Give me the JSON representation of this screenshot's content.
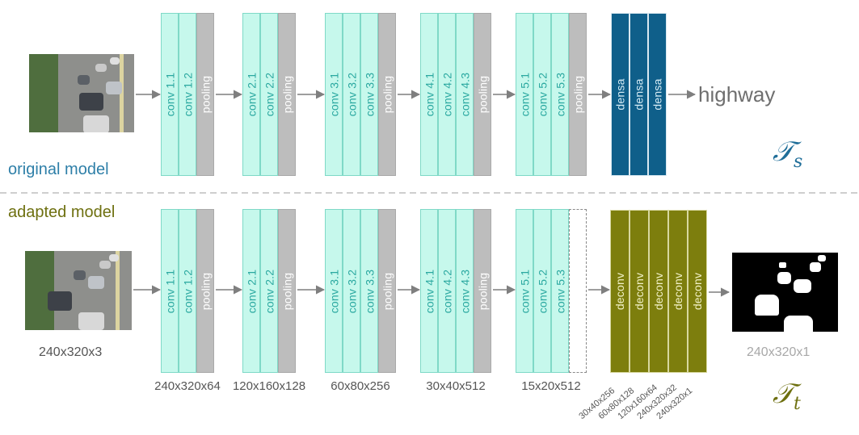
{
  "top": {
    "label": "original model",
    "output": "highway",
    "math_symbol": "𝒯",
    "math_sub": "s",
    "stages": [
      {
        "convs": [
          "conv 1.1",
          "conv 1.2"
        ],
        "pool": "pooling"
      },
      {
        "convs": [
          "conv 2.1",
          "conv 2.2"
        ],
        "pool": "pooling"
      },
      {
        "convs": [
          "conv 3.1",
          "conv 3.2",
          "conv 3.3"
        ],
        "pool": "pooling"
      },
      {
        "convs": [
          "conv 4.1",
          "conv 4.2",
          "conv 4.3"
        ],
        "pool": "pooling"
      },
      {
        "convs": [
          "conv 5.1",
          "conv 5.2",
          "conv 5.3"
        ],
        "pool": "pooling"
      }
    ],
    "dense": [
      "densa",
      "densa",
      "densa"
    ]
  },
  "bottom": {
    "label": "adapted model",
    "input_dims": "240x320x3",
    "output_dims": "240x320x1",
    "math_symbol": "𝒯",
    "math_sub": "t",
    "stages": [
      {
        "convs": [
          "conv 1.1",
          "conv 1.2"
        ],
        "pool": "pooling",
        "dims": "240x320x64"
      },
      {
        "convs": [
          "conv 2.1",
          "conv 2.2"
        ],
        "pool": "pooling",
        "dims": "120x160x128"
      },
      {
        "convs": [
          "conv 3.1",
          "conv 3.2",
          "conv 3.3"
        ],
        "pool": "pooling",
        "dims": "60x80x256"
      },
      {
        "convs": [
          "conv 4.1",
          "conv 4.2",
          "conv 4.3"
        ],
        "pool": "pooling",
        "dims": "30x40x512"
      },
      {
        "convs": [
          "conv 5.1",
          "conv 5.2",
          "conv 5.3"
        ],
        "pool": "",
        "dims": "15x20x512"
      }
    ],
    "deconv": [
      "deconv",
      "deconv",
      "deconv",
      "deconv",
      "deconv"
    ],
    "deconv_dims": [
      "30x40x256",
      "60x80x128",
      "120x160x64",
      "240x320x32",
      "240x320x1"
    ]
  },
  "colors": {
    "conv": "#c6f8ec",
    "pool": "#bdbdbd",
    "dense": "#0f5f8a",
    "deconv": "#7d7e0d",
    "top_label": "#2e7fa8",
    "bottom_label": "#6e7010",
    "arrow": "#7f7f7f"
  }
}
